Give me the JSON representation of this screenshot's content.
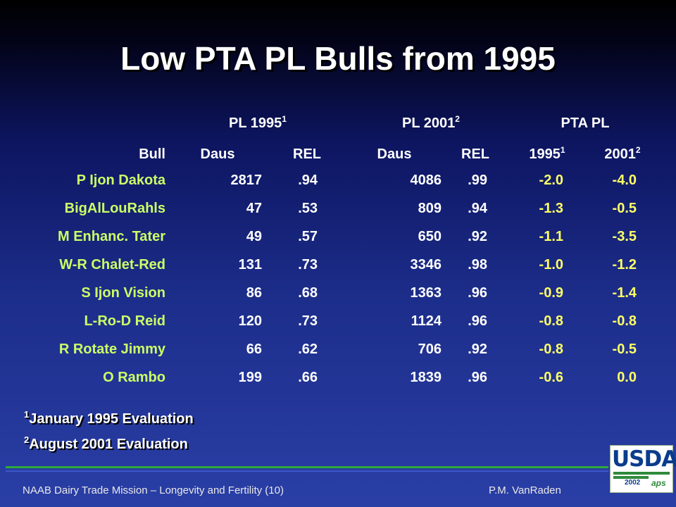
{
  "title": "Low PTA PL Bulls from 1995",
  "group_headers": {
    "pl1995": {
      "text": "PL 1995",
      "sup": "1"
    },
    "pl2001": {
      "text": "PL 2001",
      "sup": "2"
    },
    "ptapl": {
      "text": "PTA PL"
    }
  },
  "columns": {
    "bull": "Bull",
    "daus1": "Daus",
    "rel1": "REL",
    "daus2": "Daus",
    "rel2": "REL",
    "y1995": {
      "text": "1995",
      "sup": "1"
    },
    "y2001": {
      "text": "2001",
      "sup": "2"
    }
  },
  "rows": [
    {
      "bull": "P Ijon Dakota",
      "daus1": "2817",
      "rel1": ".94",
      "daus2": "4086",
      "rel2": ".99",
      "pta1995": "-2.0",
      "pta2001": "-4.0"
    },
    {
      "bull": "BigAlLouRahls",
      "daus1": "47",
      "rel1": ".53",
      "daus2": "809",
      "rel2": ".94",
      "pta1995": "-1.3",
      "pta2001": "-0.5"
    },
    {
      "bull": "M Enhanc. Tater",
      "daus1": "49",
      "rel1": ".57",
      "daus2": "650",
      "rel2": ".92",
      "pta1995": "-1.1",
      "pta2001": "-3.5"
    },
    {
      "bull": "W-R Chalet-Red",
      "daus1": "131",
      "rel1": ".73",
      "daus2": "3346",
      "rel2": ".98",
      "pta1995": "-1.0",
      "pta2001": "-1.2"
    },
    {
      "bull": "S Ijon Vision",
      "daus1": "86",
      "rel1": ".68",
      "daus2": "1363",
      "rel2": ".96",
      "pta1995": "-0.9",
      "pta2001": "-1.4"
    },
    {
      "bull": "L-Ro-D Reid",
      "daus1": "120",
      "rel1": ".73",
      "daus2": "1124",
      "rel2": ".96",
      "pta1995": "-0.8",
      "pta2001": "-0.8"
    },
    {
      "bull": "R Rotate Jimmy",
      "daus1": "66",
      "rel1": ".62",
      "daus2": "706",
      "rel2": ".92",
      "pta1995": "-0.8",
      "pta2001": "-0.5"
    },
    {
      "bull": "O Rambo",
      "daus1": "199",
      "rel1": ".66",
      "daus2": "1839",
      "rel2": ".96",
      "pta1995": "-0.6",
      "pta2001": "0.0"
    }
  ],
  "footnotes": [
    {
      "sup": "1",
      "text": "January 1995 Evaluation"
    },
    {
      "sup": "2",
      "text": "August 2001 Evaluation"
    }
  ],
  "footer": {
    "left": "NAAB Dairy  Trade Mission – Longevity and Fertility (10)",
    "right": "P.M. VanRaden"
  },
  "logo": {
    "text": "USDA",
    "year": "2002",
    "mark": "aps"
  },
  "colors": {
    "bull_names": "#ccff66",
    "pta_values": "#ffff66",
    "numbers": "#ffffff",
    "rule": "#2eaa3c"
  }
}
